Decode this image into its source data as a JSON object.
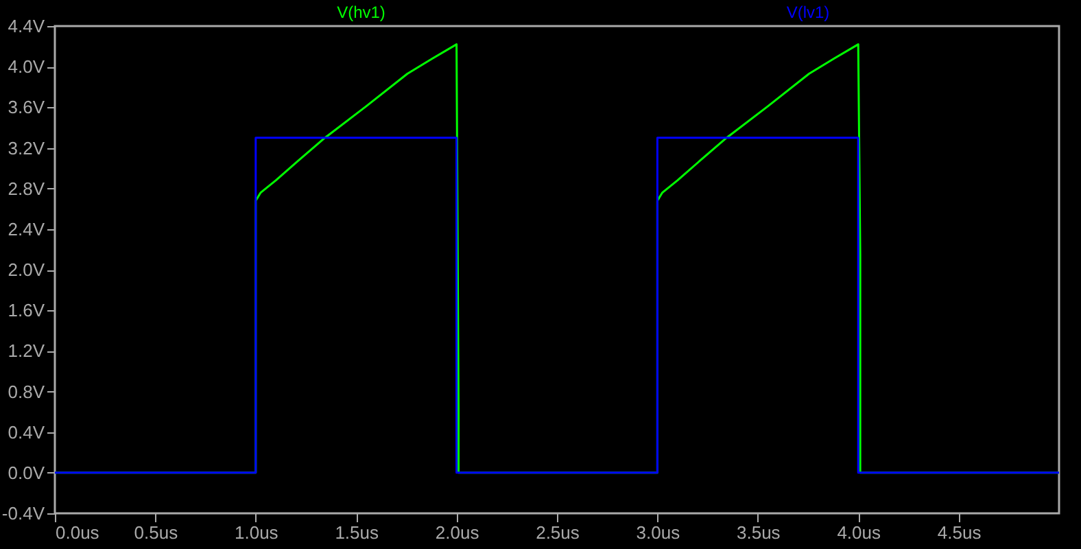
{
  "chart_data": {
    "type": "line",
    "series": [
      {
        "name": "V(hv1)",
        "color": "#00ff00",
        "x": [
          0,
          1.0,
          1.0,
          1.025,
          1.1,
          1.21,
          1.345,
          1.55,
          1.755,
          1.88,
          2.0,
          2.01,
          2.01,
          3.0,
          3.0,
          3.025,
          3.1,
          3.21,
          3.345,
          3.55,
          3.755,
          3.88,
          4.0,
          4.01,
          4.01,
          5.0
        ],
        "values": [
          0,
          0,
          2.68,
          2.76,
          2.88,
          3.07,
          3.3,
          3.61,
          3.93,
          4.08,
          4.22,
          0.6,
          0,
          0,
          2.68,
          2.76,
          2.88,
          3.07,
          3.3,
          3.61,
          3.93,
          4.08,
          4.22,
          2.15,
          0,
          0
        ]
      },
      {
        "name": "V(lv1)",
        "color": "#0000ff",
        "x": [
          0,
          1.0,
          1.0,
          2.0,
          2.0,
          3.0,
          3.0,
          4.0,
          4.0,
          5.0
        ],
        "values": [
          0,
          0,
          3.3,
          3.3,
          0,
          0,
          3.3,
          3.3,
          0,
          0
        ]
      }
    ],
    "xlim": [
      0,
      5
    ],
    "xticks": [
      {
        "value": 0,
        "label": "0.0us"
      },
      {
        "value": 0.5,
        "label": "0.5us"
      },
      {
        "value": 1.0,
        "label": "1.0us"
      },
      {
        "value": 1.5,
        "label": "1.5us"
      },
      {
        "value": 2.0,
        "label": "2.0us"
      },
      {
        "value": 2.5,
        "label": "2.5us"
      },
      {
        "value": 3.0,
        "label": "3.0us"
      },
      {
        "value": 3.5,
        "label": "3.5us"
      },
      {
        "value": 4.0,
        "label": "4.0us"
      },
      {
        "value": 4.5,
        "label": "4.5us"
      }
    ],
    "ylim": [
      -0.4,
      4.4
    ],
    "yticks": [
      {
        "value": -0.4,
        "label": "-0.4V"
      },
      {
        "value": 0,
        "label": "0.0V"
      },
      {
        "value": 0.4,
        "label": "0.4V"
      },
      {
        "value": 0.8,
        "label": "0.8V"
      },
      {
        "value": 1.2,
        "label": "1.2V"
      },
      {
        "value": 1.6,
        "label": "1.6V"
      },
      {
        "value": 2.0,
        "label": "2.0V"
      },
      {
        "value": 2.4,
        "label": "2.4V"
      },
      {
        "value": 2.8,
        "label": "2.8V"
      },
      {
        "value": 3.2,
        "label": "3.2V"
      },
      {
        "value": 3.6,
        "label": "3.6V"
      },
      {
        "value": 4.0,
        "label": "4.0V"
      },
      {
        "value": 4.4,
        "label": "4.4V"
      }
    ],
    "legend": "top",
    "grid": false,
    "line_style": "solid"
  }
}
